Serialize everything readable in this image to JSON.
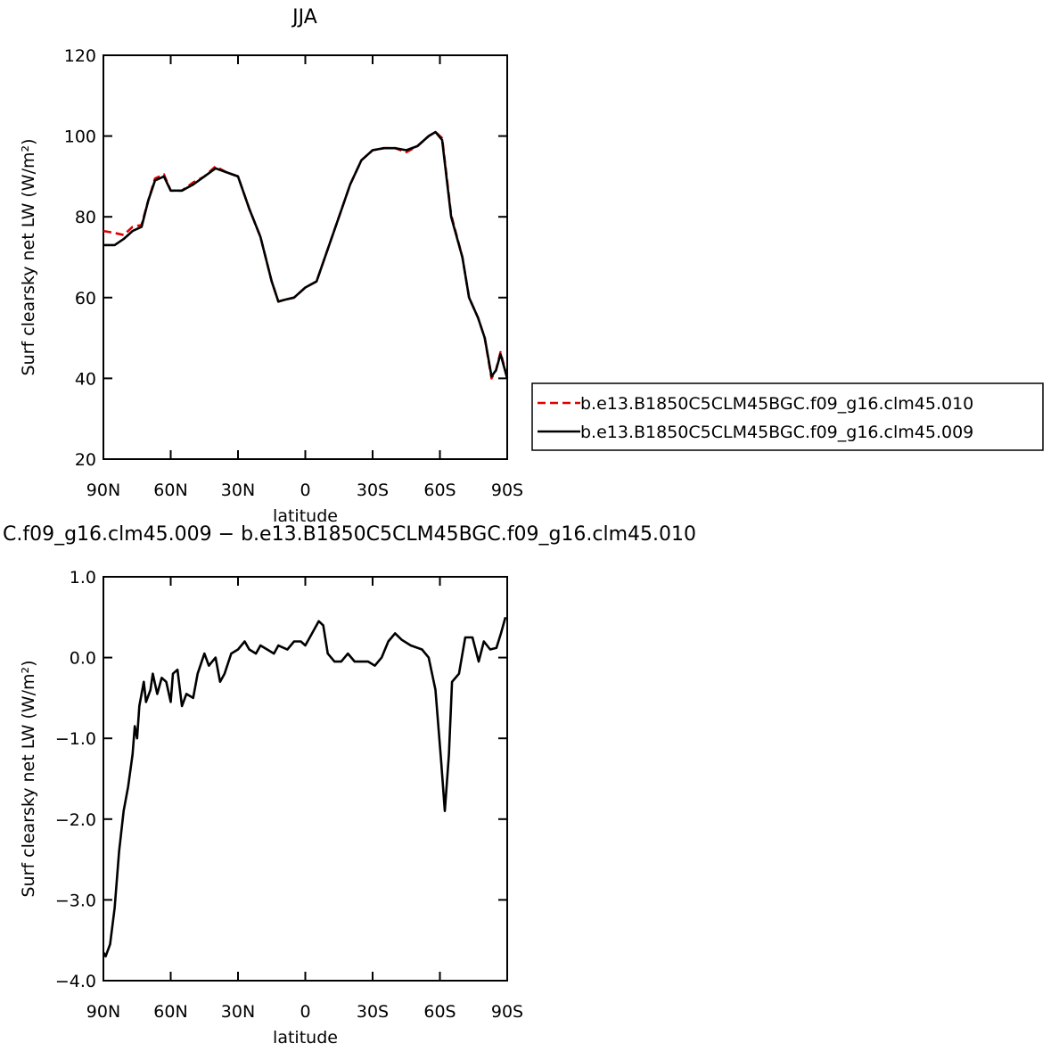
{
  "chart_data": [
    {
      "type": "line",
      "title": "JJA",
      "xlabel": "latitude",
      "ylabel": "Surf clearsky net LW (W/m²)",
      "x": [
        90,
        85,
        81,
        77,
        73,
        70,
        67,
        63,
        60,
        55,
        50,
        45,
        40,
        35,
        30,
        25,
        20,
        15,
        12,
        9,
        5,
        0,
        -5,
        -10,
        -15,
        -20,
        -25,
        -30,
        -35,
        -40,
        -45,
        -50,
        -55,
        -58,
        -61,
        -65,
        -70,
        -73,
        -77,
        -80,
        -83,
        -85,
        -87,
        -90
      ],
      "series": [
        {
          "name": "b.e13.B1850C5CLM45BGC.f09_g16.clm45.010",
          "color": "#e00000",
          "dash": true,
          "values": [
            76.5,
            76,
            75.5,
            77.5,
            78,
            84,
            89.5,
            90.5,
            86.5,
            86.5,
            88.5,
            90,
            92.5,
            91,
            90,
            82,
            75,
            64,
            59,
            59.5,
            60,
            62.5,
            64,
            72,
            80,
            88,
            94,
            96.5,
            97,
            97,
            96,
            97.5,
            100,
            101,
            99.5,
            80.5,
            70,
            60,
            55,
            50,
            40,
            42,
            46.5,
            40
          ]
        },
        {
          "name": "b.e13.B1850C5CLM45BGC.f09_g16.clm45.009",
          "color": "#000000",
          "dash": false,
          "values": [
            73,
            73,
            74.5,
            76.5,
            77.5,
            84,
            89,
            90,
            86.5,
            86.5,
            88,
            90,
            92,
            91,
            90,
            82,
            75,
            64,
            59,
            59.5,
            60,
            62.5,
            64,
            72,
            80,
            88,
            94,
            96.5,
            97,
            97,
            96.5,
            97.5,
            100,
            101,
            99,
            80,
            70,
            60,
            55,
            50,
            40.5,
            42,
            46,
            40
          ]
        }
      ],
      "xlim": [
        90,
        -90
      ],
      "xticks": [
        {
          "value": 90,
          "label": "90N"
        },
        {
          "value": 60,
          "label": "60N"
        },
        {
          "value": 30,
          "label": "30N"
        },
        0,
        {
          "value": -30,
          "label": "30S"
        },
        {
          "value": -60,
          "label": "60S"
        },
        {
          "value": -90,
          "label": "90S"
        }
      ],
      "ylim": [
        20,
        120
      ],
      "yticks": [
        20,
        40,
        60,
        80,
        100,
        120
      ],
      "legend": "right"
    },
    {
      "type": "line",
      "title": "C.f09_g16.clm45.009 − b.e13.B1850C5CLM45BGC.f09_g16.clm45.010",
      "xlabel": "latitude",
      "ylabel": "Surf clearsky net LW (W/m²)",
      "x": [
        90,
        89,
        87,
        85,
        83,
        81,
        79,
        77,
        76,
        75,
        74,
        72,
        71,
        69,
        68,
        66,
        64,
        62,
        60,
        59,
        57,
        55,
        53,
        50,
        48,
        45,
        43,
        40,
        38,
        36,
        33,
        30,
        27,
        25,
        22,
        20,
        17,
        14,
        12,
        8,
        5,
        2,
        0,
        -3,
        -6,
        -8,
        -10,
        -13,
        -16,
        -19,
        -22,
        -25,
        -28,
        -31,
        -34,
        -37,
        -40,
        -43,
        -47,
        -52,
        -55,
        -58,
        -60.6,
        -62.2,
        -64,
        -65.4,
        -68.5,
        -71.3,
        -74.5,
        -77.3,
        -79.6,
        -82.4,
        -85.2,
        -87.2,
        -89.2
      ],
      "series": [
        {
          "name": null,
          "color": "#000000",
          "dash": false,
          "values": [
            -3.65,
            -3.7,
            -3.55,
            -3.1,
            -2.4,
            -1.9,
            -1.6,
            -1.2,
            -0.85,
            -1.0,
            -0.6,
            -0.3,
            -0.55,
            -0.4,
            -0.2,
            -0.45,
            -0.25,
            -0.3,
            -0.55,
            -0.2,
            -0.15,
            -0.6,
            -0.45,
            -0.5,
            -0.2,
            0.05,
            -0.1,
            0.0,
            -0.3,
            -0.2,
            0.05,
            0.1,
            0.2,
            0.1,
            0.05,
            0.15,
            0.1,
            0.05,
            0.15,
            0.1,
            0.2,
            0.2,
            0.15,
            0.3,
            0.45,
            0.4,
            0.05,
            -0.05,
            -0.05,
            0.05,
            -0.05,
            -0.05,
            -0.05,
            -0.1,
            0.0,
            0.2,
            0.3,
            0.22,
            0.15,
            0.1,
            0.0,
            -0.4,
            -1.3,
            -1.9,
            -1.2,
            -0.3,
            -0.2,
            0.25,
            0.25,
            -0.05,
            0.2,
            0.1,
            0.12,
            0.3,
            0.5
          ]
        }
      ],
      "xlim": [
        90,
        -90
      ],
      "xticks": [
        {
          "value": 90,
          "label": "90N"
        },
        {
          "value": 60,
          "label": "60N"
        },
        {
          "value": 30,
          "label": "30N"
        },
        0,
        {
          "value": -30,
          "label": "30S"
        },
        {
          "value": -60,
          "label": "60S"
        },
        {
          "value": -90,
          "label": "90S"
        }
      ],
      "ylim": [
        -4,
        1
      ],
      "yticks": [
        {
          "value": -4,
          "label": "−4.0"
        },
        {
          "value": -3,
          "label": "−3.0"
        },
        {
          "value": -2,
          "label": "−2.0"
        },
        {
          "value": -1,
          "label": "−1.0"
        },
        {
          "value": 0,
          "label": "0.0"
        },
        {
          "value": 1,
          "label": "1.0"
        }
      ]
    }
  ]
}
